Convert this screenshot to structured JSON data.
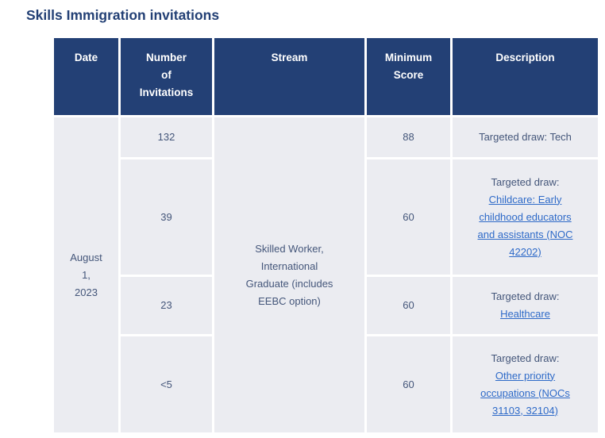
{
  "title": "Skills Immigration invitations",
  "colors": {
    "header-bg": "#234075",
    "cell-bg": "#ebecf1",
    "title": "#234075",
    "text": "#44567a",
    "link": "#2e6ac8",
    "border": "#ffffff"
  },
  "table": {
    "headers": [
      {
        "label": "Date"
      },
      {
        "label": "Number\nof\nInvitations"
      },
      {
        "label": "Stream"
      },
      {
        "label": "Minimum\nScore"
      },
      {
        "label": "Description"
      }
    ],
    "date": "August\n1,\n2023",
    "stream": "Skilled Worker,\nInternational\nGraduate (includes\nEEBC option)",
    "rows": [
      {
        "number": "132",
        "min_score": "88",
        "desc_prefix": "Targeted draw: Tech",
        "desc_link": ""
      },
      {
        "number": "39",
        "min_score": "60",
        "desc_prefix": "Targeted draw:\n",
        "desc_link": "Childcare: Early\nchildhood educators\nand assistants (NOC\n42202)"
      },
      {
        "number": "23",
        "min_score": "60",
        "desc_prefix": "Targeted draw:\n",
        "desc_link": "Healthcare"
      },
      {
        "number": "<5",
        "min_score": "60",
        "desc_prefix": "Targeted draw:\n",
        "desc_link": "Other priority\noccupations (NOCs\n31103, 32104)"
      }
    ]
  }
}
